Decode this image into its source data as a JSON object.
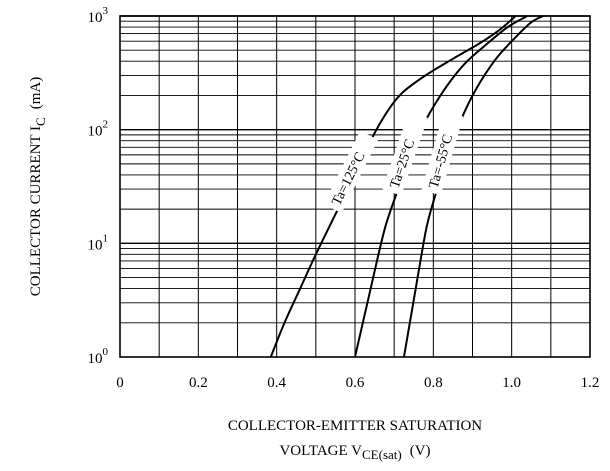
{
  "chart_data": {
    "type": "line",
    "xlabel_line1": "COLLECTOR-EMITTER SATURATION",
    "xlabel_line2_main": "VOLTAGE V",
    "xlabel_line2_sub": "CE(sat)",
    "xlabel_line2_unit": "(V)",
    "ylabel_main": "COLLECTOR CURRENT I",
    "ylabel_sub": "C",
    "ylabel_unit": "(mA)",
    "x_ticks": [
      "0",
      "0.2",
      "0.4",
      "0.6",
      "0.8",
      "1.0",
      "1.2"
    ],
    "y_ticks": [
      {
        "base": "10",
        "exp": "0"
      },
      {
        "base": "10",
        "exp": "1"
      },
      {
        "base": "10",
        "exp": "2"
      },
      {
        "base": "10",
        "exp": "3"
      }
    ],
    "xlim": [
      0,
      1.2
    ],
    "ylim": [
      1,
      1000
    ],
    "y_scale": "log",
    "grid": true,
    "series": [
      {
        "name": "Ta=125°C",
        "points": [
          [
            0.385,
            1
          ],
          [
            0.42,
            2
          ],
          [
            0.46,
            4
          ],
          [
            0.5,
            8
          ],
          [
            0.55,
            18
          ],
          [
            0.6,
            40
          ],
          [
            0.64,
            80
          ],
          [
            0.68,
            140
          ],
          [
            0.72,
            210
          ],
          [
            0.78,
            300
          ],
          [
            0.85,
            420
          ],
          [
            0.92,
            580
          ],
          [
            0.97,
            760
          ],
          [
            1.01,
            1000
          ]
        ]
      },
      {
        "name": "Ta=25°C",
        "points": [
          [
            0.6,
            1
          ],
          [
            0.62,
            2
          ],
          [
            0.64,
            4
          ],
          [
            0.66,
            8
          ],
          [
            0.68,
            15
          ],
          [
            0.71,
            30
          ],
          [
            0.74,
            60
          ],
          [
            0.78,
            120
          ],
          [
            0.83,
            230
          ],
          [
            0.88,
            380
          ],
          [
            0.94,
            580
          ],
          [
            0.99,
            800
          ],
          [
            1.04,
            1000
          ]
        ]
      },
      {
        "name": "Ta=-55°C",
        "points": [
          [
            0.725,
            1
          ],
          [
            0.74,
            2
          ],
          [
            0.755,
            4
          ],
          [
            0.77,
            8
          ],
          [
            0.785,
            15
          ],
          [
            0.81,
            30
          ],
          [
            0.84,
            60
          ],
          [
            0.87,
            120
          ],
          [
            0.91,
            230
          ],
          [
            0.96,
            420
          ],
          [
            1.01,
            650
          ],
          [
            1.05,
            880
          ],
          [
            1.08,
            1000
          ]
        ]
      }
    ]
  }
}
